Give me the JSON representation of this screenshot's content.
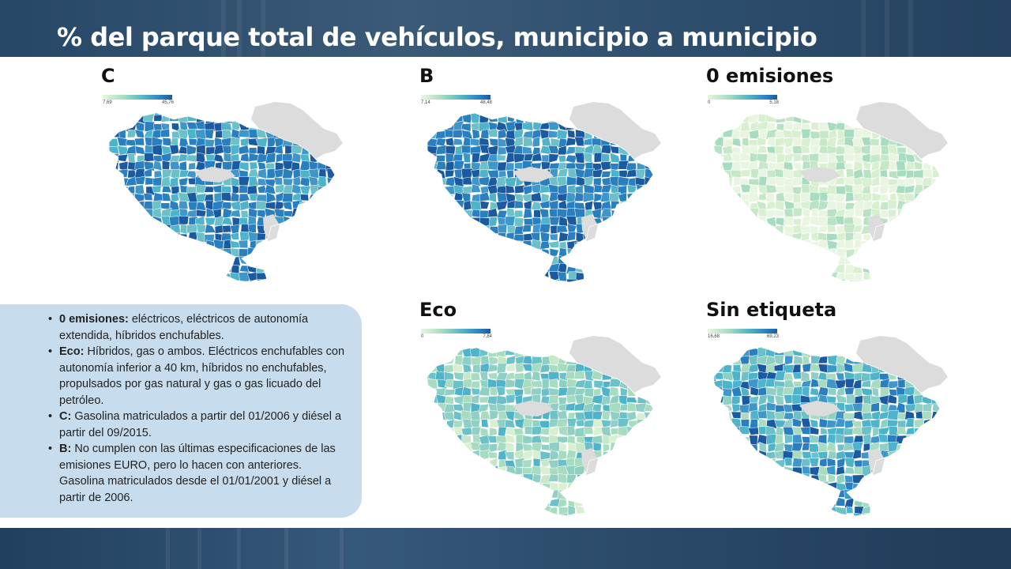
{
  "header": {
    "title": "% del parque total de vehículos, municipio a municipio"
  },
  "maps": [
    {
      "id": "c",
      "title": "C",
      "legend_min": "7,69",
      "legend_max": "45,76",
      "level": "high"
    },
    {
      "id": "b",
      "title": "B",
      "legend_min": "7,14",
      "legend_max": "48,48",
      "level": "high"
    },
    {
      "id": "zero",
      "title": "0 emisiones",
      "legend_min": "0",
      "legend_max": "5,18",
      "level": "low"
    },
    {
      "id": "eco",
      "title": "Eco",
      "legend_min": "0",
      "legend_max": "7,84",
      "level": "low-mid"
    },
    {
      "id": "sin",
      "title": "Sin etiqueta",
      "legend_min": "16,68",
      "legend_max": "69,23",
      "level": "mid"
    }
  ],
  "colors": {
    "scale_low": "#e8f5e0",
    "scale_mid": "#4fb3c9",
    "scale_high": "#1c5aa0",
    "no_data": "#dcdcdc",
    "notes_bg": "#c7dcec"
  },
  "notes": [
    {
      "term": "0 emisiones:",
      "text": " eléctricos, eléctricos de autonomía extendida, híbridos enchufables."
    },
    {
      "term": "Eco:",
      "text": " Híbridos, gas o ambos. Eléctricos enchufables con autonomía inferior a 40 km, híbridos no enchufables, propulsados por gas natural y gas o gas licuado del petróleo."
    },
    {
      "term": "C:",
      "text": " Gasolina matriculados a partir del 01/2006 y diésel a partir del 09/2015."
    },
    {
      "term": "B:",
      "text": " No cumplen con las últimas especificaciones de las emisiones EURO, pero lo hacen con anteriores. Gasolina matriculados desde el 01/01/2001 y diésel a partir de 2006."
    }
  ]
}
